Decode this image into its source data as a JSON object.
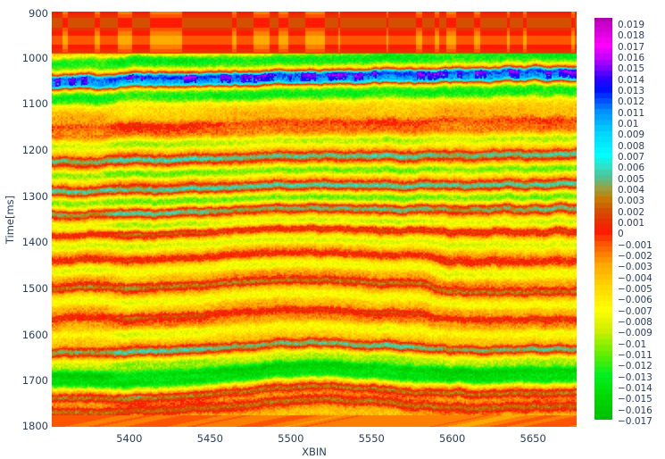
{
  "chart_data": {
    "type": "heatmap",
    "title": "",
    "xlabel": "XBIN",
    "ylabel": "Time[ms]",
    "x_range": [
      5352,
      5677
    ],
    "y_range": [
      900,
      1800
    ],
    "y_reversed": true,
    "x_ticks": [
      5400,
      5450,
      5500,
      5550,
      5600,
      5650
    ],
    "y_ticks": [
      900,
      1000,
      1100,
      1200,
      1300,
      1400,
      1500,
      1600,
      1700,
      1800
    ],
    "colorbar": {
      "min": -0.017,
      "max": 0.0195,
      "ticks": [
        "0.019",
        "0.018",
        "0.017",
        "0.016",
        "0.015",
        "0.014",
        "0.013",
        "0.012",
        "0.011",
        "0.01",
        "0.009",
        "0.008",
        "0.007",
        "0.006",
        "0.005",
        "0.004",
        "0.003",
        "0.002",
        "0.001",
        "0",
        "−0.001",
        "−0.002",
        "−0.003",
        "−0.004",
        "−0.005",
        "−0.006",
        "−0.007",
        "−0.008",
        "−0.009",
        "−0.01",
        "−0.011",
        "−0.012",
        "−0.013",
        "−0.014",
        "−0.015",
        "−0.016",
        "−0.017"
      ],
      "tick_values": [
        0.019,
        0.018,
        0.017,
        0.016,
        0.015,
        0.014,
        0.013,
        0.012,
        0.011,
        0.01,
        0.009,
        0.008,
        0.007,
        0.006,
        0.005,
        0.004,
        0.003,
        0.002,
        0.001,
        0,
        -0.001,
        -0.002,
        -0.003,
        -0.004,
        -0.005,
        -0.006,
        -0.007,
        -0.008,
        -0.009,
        -0.01,
        -0.011,
        -0.012,
        -0.013,
        -0.014,
        -0.015,
        -0.016,
        -0.017
      ],
      "colorscale": [
        [
          -0.017,
          "#00c000"
        ],
        [
          -0.015,
          "#00d800"
        ],
        [
          -0.013,
          "#00f020"
        ],
        [
          -0.011,
          "#66ee00"
        ],
        [
          -0.009,
          "#ccf000"
        ],
        [
          -0.007,
          "#ffff00"
        ],
        [
          -0.005,
          "#ffd800"
        ],
        [
          -0.003,
          "#ffaa00"
        ],
        [
          -0.001,
          "#ff5500"
        ],
        [
          0.0,
          "#ff1a00"
        ],
        [
          0.001,
          "#e83000"
        ],
        [
          0.002,
          "#d45000"
        ],
        [
          0.003,
          "#c87800"
        ],
        [
          0.004,
          "#9aa040"
        ],
        [
          0.005,
          "#55c090"
        ],
        [
          0.006,
          "#30e0c8"
        ],
        [
          0.007,
          "#00ffff"
        ],
        [
          0.009,
          "#00d8ff"
        ],
        [
          0.011,
          "#0090ff"
        ],
        [
          0.012,
          "#0050ff"
        ],
        [
          0.013,
          "#0010ff"
        ],
        [
          0.014,
          "#3000ff"
        ],
        [
          0.015,
          "#8000ff"
        ],
        [
          0.016,
          "#c800ff"
        ],
        [
          0.017,
          "#ff00ff"
        ],
        [
          0.019,
          "#c800c8"
        ],
        [
          0.0195,
          "#b000b0"
        ]
      ]
    },
    "description": "Seismic amplitude section (2D heatmap) of time vs. crossline bin; predominantly negative (red/orange/yellow) amplitudes with laterally continuous reflectors. Strong positive (cyan/blue/magenta) reflector near 1040-1060 ms; cyan reflectors near 1220, 1290, 1340, 1380, 1420, 1500, 1640, 1740 ms; green (strong negative) band near 1690-1710 ms; reflectors dip/sag around XBIN 5460-5520 and show a fault-like disruption near XBIN 5580-5600 between 1400-1600 ms.",
    "reflector_horizons_ms": [
      {
        "t": 945,
        "amp": 0.001
      },
      {
        "t": 1005,
        "amp": -0.008
      },
      {
        "t": 1020,
        "amp": -0.006
      },
      {
        "t": 1045,
        "amp": 0.013
      },
      {
        "t": 1060,
        "amp": 0.011
      },
      {
        "t": 1080,
        "amp": -0.006
      },
      {
        "t": 1095,
        "amp": -0.007
      },
      {
        "t": 1115,
        "amp": -0.003
      },
      {
        "t": 1150,
        "amp": 0.003
      },
      {
        "t": 1190,
        "amp": -0.006
      },
      {
        "t": 1225,
        "amp": 0.007
      },
      {
        "t": 1255,
        "amp": -0.007
      },
      {
        "t": 1290,
        "amp": 0.007
      },
      {
        "t": 1315,
        "amp": -0.007
      },
      {
        "t": 1340,
        "amp": 0.007
      },
      {
        "t": 1365,
        "amp": -0.006
      },
      {
        "t": 1385,
        "amp": 0.006
      },
      {
        "t": 1410,
        "amp": -0.007
      },
      {
        "t": 1440,
        "amp": 0.005
      },
      {
        "t": 1465,
        "amp": -0.006
      },
      {
        "t": 1500,
        "amp": 0.007
      },
      {
        "t": 1530,
        "amp": -0.006
      },
      {
        "t": 1565,
        "amp": 0.005
      },
      {
        "t": 1600,
        "amp": -0.005
      },
      {
        "t": 1640,
        "amp": 0.007
      },
      {
        "t": 1665,
        "amp": -0.006
      },
      {
        "t": 1690,
        "amp": -0.011
      },
      {
        "t": 1710,
        "amp": -0.012
      },
      {
        "t": 1740,
        "amp": 0.007
      },
      {
        "t": 1770,
        "amp": 0.004
      }
    ]
  }
}
